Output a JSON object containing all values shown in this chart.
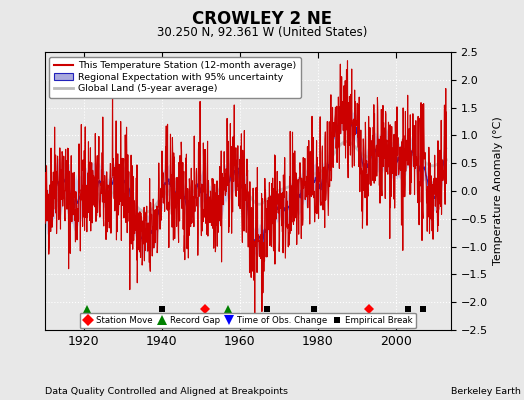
{
  "title": "CROWLEY 2 NE",
  "subtitle": "30.250 N, 92.361 W (United States)",
  "ylabel": "Temperature Anomaly (°C)",
  "xlabel_footer": "Data Quality Controlled and Aligned at Breakpoints",
  "source_label": "Berkeley Earth",
  "ylim": [
    -2.5,
    2.5
  ],
  "xlim": [
    1910,
    2014
  ],
  "yticks": [
    -2.5,
    -2,
    -1.5,
    -1,
    -0.5,
    0,
    0.5,
    1,
    1.5,
    2,
    2.5
  ],
  "xticks": [
    1920,
    1940,
    1960,
    1980,
    2000
  ],
  "background_color": "#e8e8e8",
  "plot_bg_color": "#e8e8e8",
  "station_moves": [
    1951,
    1993
  ],
  "record_gaps": [
    1921,
    1957
  ],
  "obs_changes": [],
  "empirical_breaks": [
    1940,
    1967,
    1979,
    2003,
    2007
  ],
  "red_line_color": "#cc0000",
  "blue_line_color": "#2222bb",
  "blue_fill_color": "#aaaadd",
  "gray_line_color": "#bbbbbb",
  "legend_box_color": "#ffffff"
}
